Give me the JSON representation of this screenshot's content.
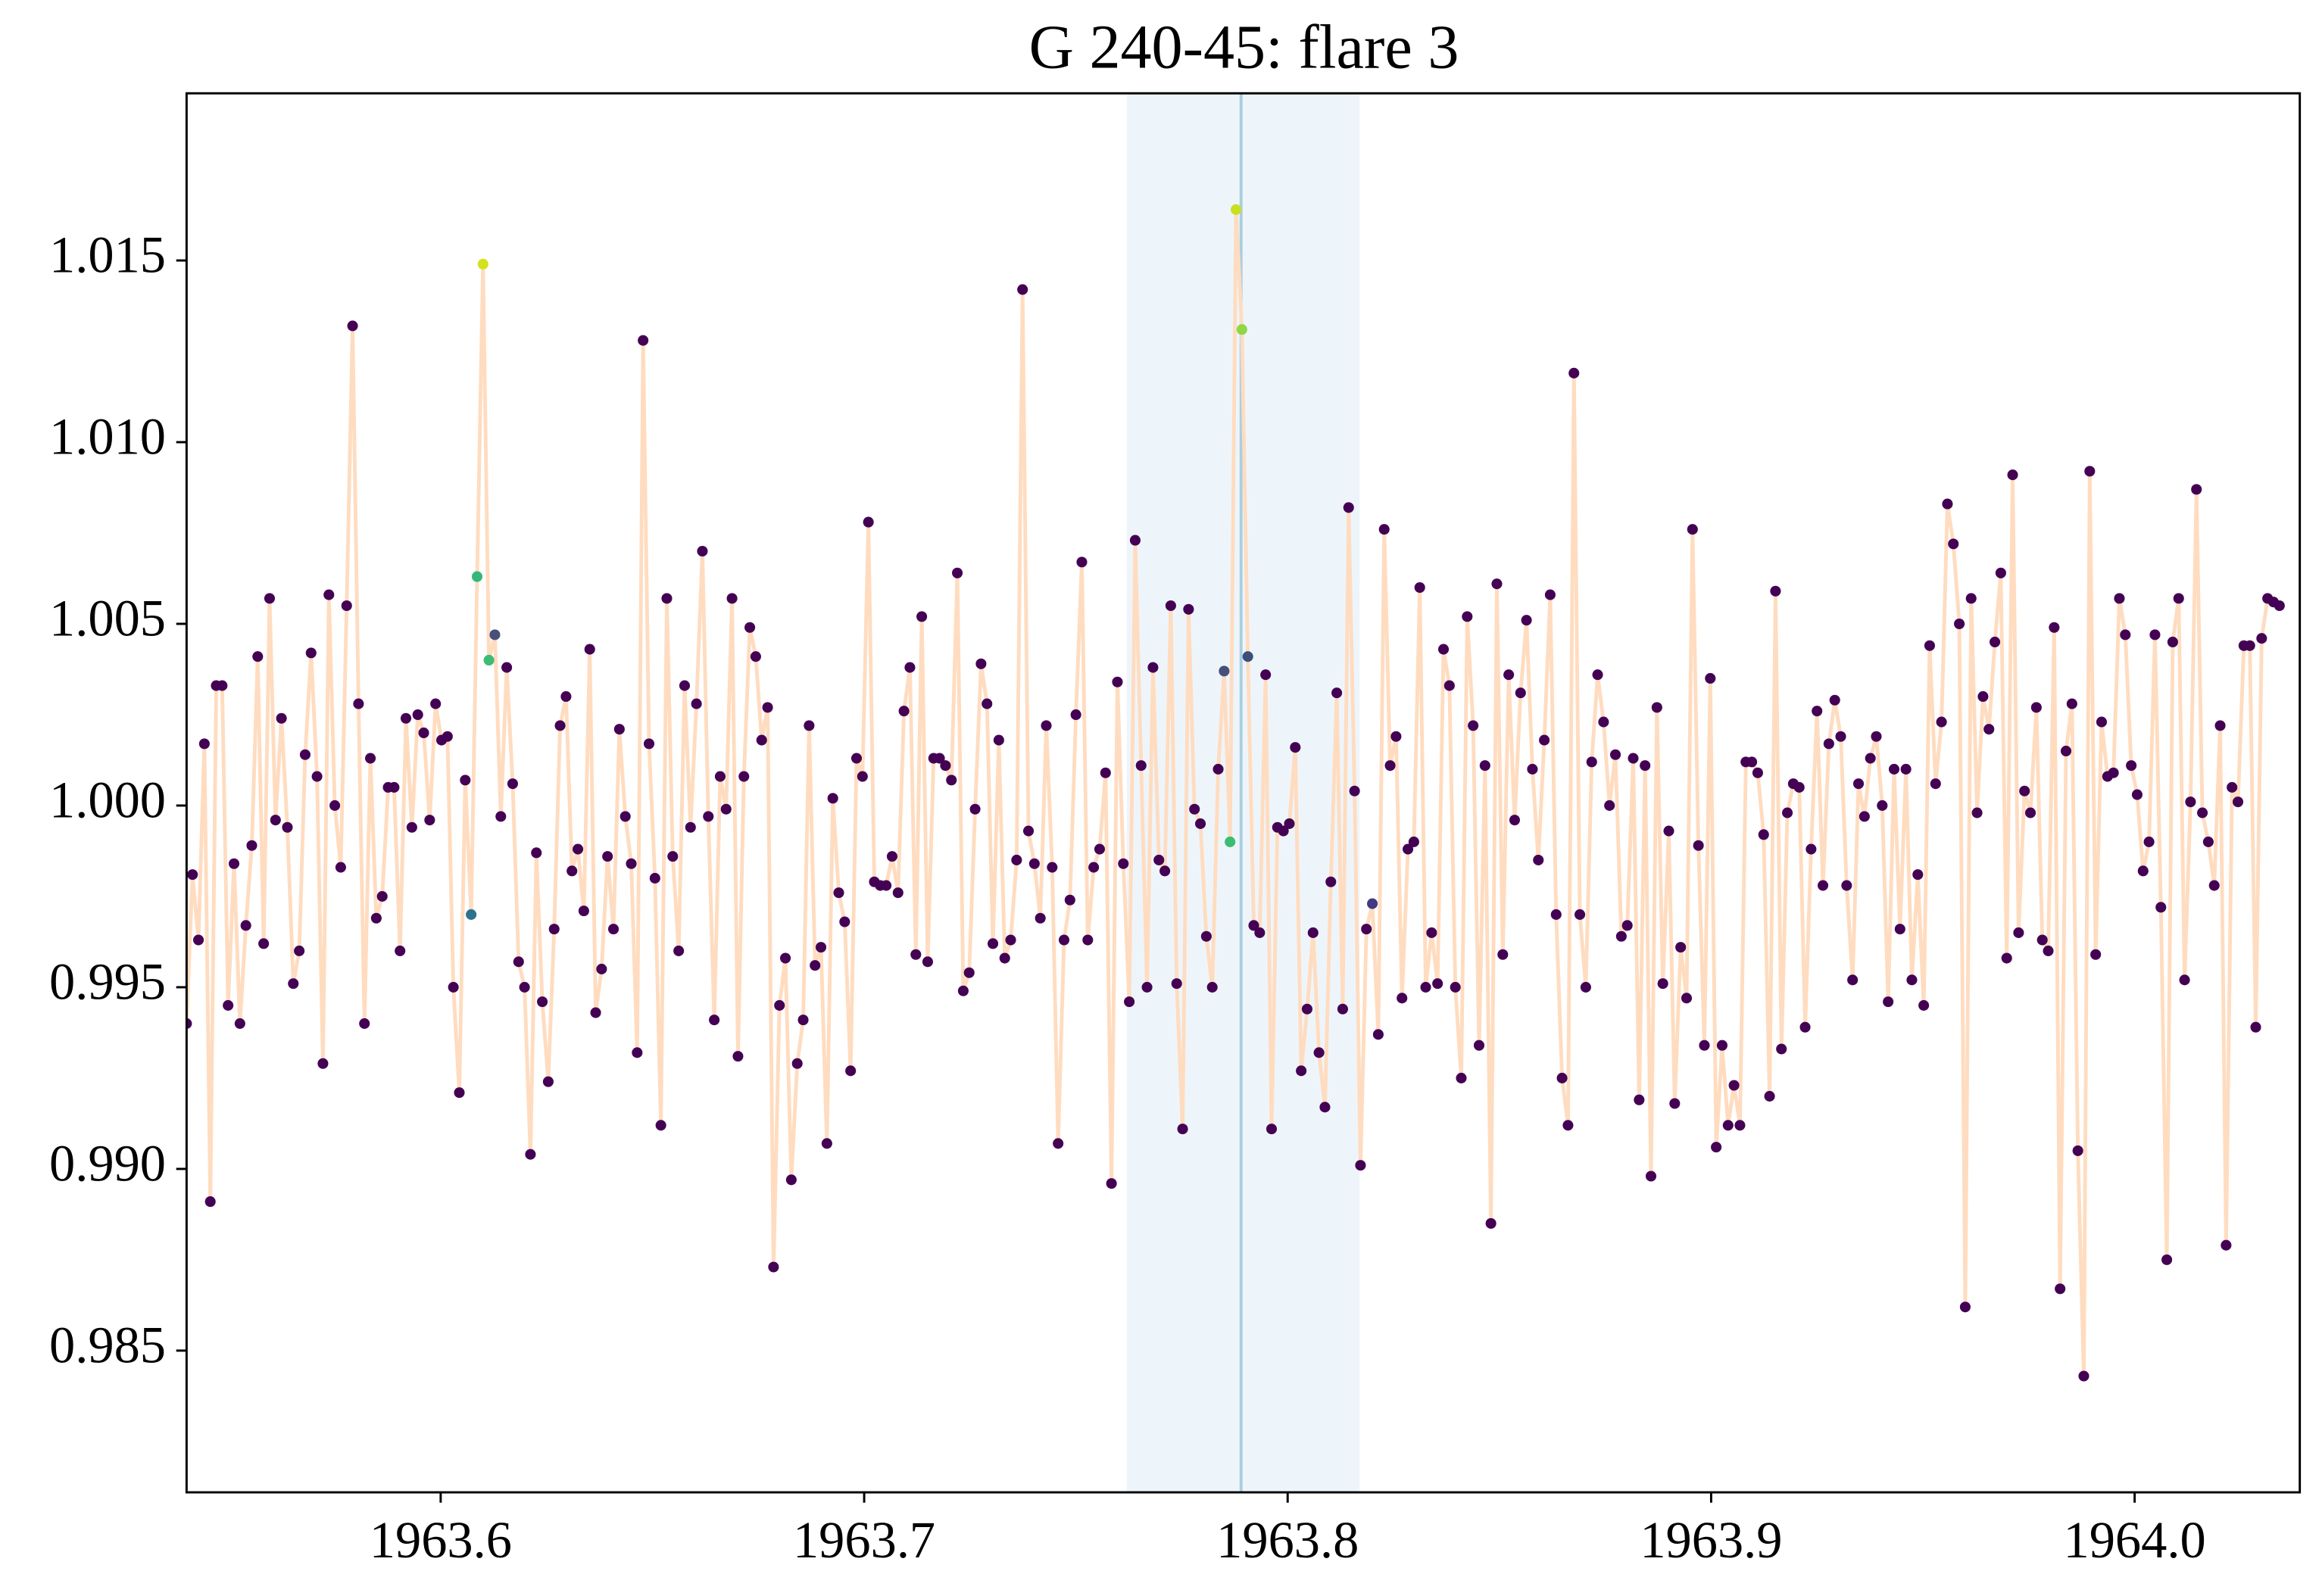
{
  "chart_data": {
    "type": "line",
    "title": "G 240-45: flare 3",
    "x": [
      1963.54,
      1963.5414,
      1963.5428,
      1963.5442,
      1963.5456,
      1963.547,
      1963.5484,
      1963.5498,
      1963.5512,
      1963.5526,
      1963.554,
      1963.5554,
      1963.5568,
      1963.5582,
      1963.5596,
      1963.561,
      1963.5624,
      1963.5638,
      1963.5652,
      1963.5666,
      1963.568,
      1963.5694,
      1963.5708,
      1963.5722,
      1963.5736,
      1963.575,
      1963.5764,
      1963.5778,
      1963.5792,
      1963.5806,
      1963.582,
      1963.5834,
      1963.5848,
      1963.5862,
      1963.5876,
      1963.589,
      1963.5904,
      1963.5918,
      1963.5932,
      1963.5946,
      1963.596,
      1963.5974,
      1963.5988,
      1963.6002,
      1963.6016,
      1963.603,
      1963.6044,
      1963.6058,
      1963.6072,
      1963.6086,
      1963.61,
      1963.6114,
      1963.6128,
      1963.6142,
      1963.6156,
      1963.617,
      1963.6184,
      1963.6198,
      1963.6212,
      1963.6226,
      1963.624,
      1963.6254,
      1963.6268,
      1963.6282,
      1963.6296,
      1963.631,
      1963.6324,
      1963.6338,
      1963.6352,
      1963.6366,
      1963.638,
      1963.6394,
      1963.6408,
      1963.6422,
      1963.6436,
      1963.645,
      1963.6464,
      1963.6478,
      1963.6492,
      1963.6506,
      1963.652,
      1963.6534,
      1963.6548,
      1963.6562,
      1963.6576,
      1963.659,
      1963.6604,
      1963.6618,
      1963.6632,
      1963.6646,
      1963.666,
      1963.6674,
      1963.6688,
      1963.6702,
      1963.6716,
      1963.673,
      1963.6744,
      1963.6758,
      1963.6772,
      1963.6786,
      1963.68,
      1963.6814,
      1963.6828,
      1963.6842,
      1963.6856,
      1963.687,
      1963.6884,
      1963.6898,
      1963.6912,
      1963.6926,
      1963.694,
      1963.6954,
      1963.6968,
      1963.6982,
      1963.6996,
      1963.701,
      1963.7024,
      1963.7038,
      1963.7052,
      1963.7066,
      1963.708,
      1963.7094,
      1963.7108,
      1963.7122,
      1963.7136,
      1963.715,
      1963.7164,
      1963.7178,
      1963.7192,
      1963.7206,
      1963.722,
      1963.7234,
      1963.7248,
      1963.7262,
      1963.7276,
      1963.729,
      1963.7304,
      1963.7318,
      1963.7332,
      1963.7346,
      1963.736,
      1963.7374,
      1963.7388,
      1963.7402,
      1963.7416,
      1963.743,
      1963.7444,
      1963.7458,
      1963.7472,
      1963.7486,
      1963.75,
      1963.7514,
      1963.7528,
      1963.7542,
      1963.7556,
      1963.757,
      1963.7584,
      1963.7598,
      1963.7612,
      1963.7626,
      1963.764,
      1963.7654,
      1963.7668,
      1963.7682,
      1963.7696,
      1963.771,
      1963.7724,
      1963.7738,
      1963.7752,
      1963.7766,
      1963.778,
      1963.7794,
      1963.7808,
      1963.7822,
      1963.7836,
      1963.785,
      1963.7864,
      1963.7878,
      1963.7892,
      1963.7906,
      1963.792,
      1963.7934,
      1963.7948,
      1963.7962,
      1963.7976,
      1963.799,
      1963.8004,
      1963.8018,
      1963.8032,
      1963.8046,
      1963.806,
      1963.8074,
      1963.8088,
      1963.8102,
      1963.8116,
      1963.813,
      1963.8144,
      1963.8158,
      1963.8172,
      1963.8186,
      1963.82,
      1963.8214,
      1963.8228,
      1963.8242,
      1963.8256,
      1963.827,
      1963.8284,
      1963.8298,
      1963.8312,
      1963.8326,
      1963.834,
      1963.8354,
      1963.8368,
      1963.8382,
      1963.8396,
      1963.841,
      1963.8424,
      1963.8438,
      1963.8452,
      1963.8466,
      1963.848,
      1963.8494,
      1963.8508,
      1963.8522,
      1963.8536,
      1963.855,
      1963.8564,
      1963.8578,
      1963.8592,
      1963.8606,
      1963.862,
      1963.8634,
      1963.8648,
      1963.8662,
      1963.8676,
      1963.869,
      1963.8704,
      1963.8718,
      1963.8732,
      1963.8746,
      1963.876,
      1963.8774,
      1963.8788,
      1963.8802,
      1963.8816,
      1963.883,
      1963.8844,
      1963.8858,
      1963.8872,
      1963.8886,
      1963.89,
      1963.8914,
      1963.8928,
      1963.8942,
      1963.8956,
      1963.897,
      1963.8984,
      1963.8998,
      1963.9012,
      1963.9026,
      1963.904,
      1963.9054,
      1963.9068,
      1963.9082,
      1963.9096,
      1963.911,
      1963.9124,
      1963.9138,
      1963.9152,
      1963.9166,
      1963.918,
      1963.9194,
      1963.9208,
      1963.9222,
      1963.9236,
      1963.925,
      1963.9264,
      1963.9278,
      1963.9292,
      1963.9306,
      1963.932,
      1963.9334,
      1963.9348,
      1963.9362,
      1963.9376,
      1963.939,
      1963.9404,
      1963.9418,
      1963.9432,
      1963.9446,
      1963.946,
      1963.9474,
      1963.9488,
      1963.9502,
      1963.9516,
      1963.953,
      1963.9544,
      1963.9558,
      1963.9572,
      1963.9586,
      1963.96,
      1963.9614,
      1963.9628,
      1963.9642,
      1963.9656,
      1963.967,
      1963.9684,
      1963.9698,
      1963.9712,
      1963.9726,
      1963.974,
      1963.9754,
      1963.9768,
      1963.9782,
      1963.9796,
      1963.981,
      1963.9824,
      1963.9838,
      1963.9852,
      1963.9866,
      1963.988,
      1963.9894,
      1963.9908,
      1963.9922,
      1963.9936,
      1963.995,
      1963.9964,
      1963.9978,
      1963.9992,
      1964.0006,
      1964.002,
      1964.0034,
      1964.0048,
      1964.0062,
      1964.0076,
      1964.009,
      1964.0104,
      1964.0118,
      1964.0132,
      1964.0146,
      1964.016,
      1964.0174,
      1964.0188,
      1964.0202,
      1964.0216,
      1964.023,
      1964.0244,
      1964.0258,
      1964.0272,
      1964.0286,
      1964.03,
      1964.0314,
      1964.0328,
      1964.0342
    ],
    "y": [
      0.994,
      0.9981,
      0.9963,
      1.0017,
      0.9891,
      1.0033,
      1.0033,
      0.9945,
      0.9984,
      0.994,
      0.9967,
      0.9989,
      1.0041,
      0.9962,
      1.0057,
      0.9996,
      1.0024,
      0.9994,
      0.9951,
      0.996,
      1.0014,
      1.0042,
      1.0008,
      0.9929,
      1.0058,
      1.0,
      0.9983,
      1.0055,
      1.0132,
      1.0028,
      0.994,
      1.0013,
      0.9969,
      0.9975,
      1.0005,
      1.0005,
      0.996,
      1.0024,
      0.9994,
      1.0025,
      1.002,
      0.9996,
      1.0028,
      1.0018,
      1.0019,
      0.995,
      0.9921,
      1.0007,
      0.997,
      1.0063,
      1.0149,
      1.004,
      1.0047,
      0.9997,
      1.0038,
      1.0006,
      0.9957,
      0.995,
      0.9904,
      0.9987,
      0.9946,
      0.9924,
      0.9966,
      1.0022,
      1.003,
      0.9982,
      0.9988,
      0.9971,
      1.0043,
      0.9943,
      0.9955,
      0.9986,
      0.9966,
      1.0021,
      0.9997,
      0.9984,
      0.9932,
      1.0128,
      1.0017,
      0.998,
      0.9912,
      1.0057,
      0.9986,
      0.996,
      1.0033,
      0.9994,
      1.0028,
      1.007,
      0.9997,
      0.9941,
      1.0008,
      0.9999,
      1.0057,
      0.9931,
      1.0008,
      1.0049,
      1.0041,
      1.0018,
      1.0027,
      0.9873,
      0.9945,
      0.9958,
      0.9897,
      0.9929,
      0.9941,
      1.0022,
      0.9956,
      0.9961,
      0.9907,
      1.0002,
      0.9976,
      0.9968,
      0.9927,
      1.0013,
      1.0008,
      1.0078,
      0.9979,
      0.9978,
      0.9978,
      0.9986,
      0.9976,
      1.0026,
      1.0038,
      0.9959,
      1.0052,
      0.9957,
      1.0013,
      1.0013,
      1.0011,
      1.0007,
      1.0064,
      0.9949,
      0.9954,
      0.9999,
      1.0039,
      1.0028,
      0.9962,
      1.0018,
      0.9958,
      0.9963,
      0.9985,
      1.0142,
      0.9993,
      0.9984,
      0.9969,
      1.0022,
      0.9983,
      0.9907,
      0.9963,
      0.9974,
      1.0025,
      1.0067,
      0.9963,
      0.9983,
      0.9988,
      1.0009,
      0.9896,
      1.0034,
      0.9984,
      0.9946,
      1.0073,
      1.0011,
      0.995,
      1.0038,
      0.9985,
      0.9982,
      1.0055,
      0.9951,
      0.9911,
      1.0054,
      0.9999,
      0.9995,
      0.9964,
      0.995,
      1.001,
      1.0037,
      0.999,
      1.0164,
      1.0131,
      1.0041,
      0.9967,
      0.9965,
      1.0036,
      0.9911,
      0.9994,
      0.9993,
      0.9995,
      1.0016,
      0.9927,
      0.9944,
      0.9965,
      0.9932,
      0.9917,
      0.9979,
      1.0031,
      0.9944,
      1.0082,
      1.0004,
      0.9901,
      0.9966,
      0.9973,
      0.9937,
      1.0076,
      1.0011,
      1.0019,
      0.9947,
      0.9988,
      0.999,
      1.006,
      0.995,
      0.9965,
      0.9951,
      1.0043,
      1.0033,
      0.995,
      0.9925,
      1.0052,
      1.0022,
      0.9934,
      1.0011,
      0.9885,
      1.0061,
      0.9959,
      1.0036,
      0.9996,
      1.0031,
      1.0051,
      1.001,
      0.9985,
      1.0018,
      1.0058,
      0.997,
      0.9925,
      0.9912,
      1.0119,
      0.997,
      0.995,
      1.0012,
      1.0036,
      1.0023,
      1.0,
      1.0014,
      0.9964,
      0.9967,
      1.0013,
      0.9919,
      1.0011,
      0.9898,
      1.0027,
      0.9951,
      0.9993,
      0.9918,
      0.9961,
      0.9947,
      1.0076,
      0.9989,
      0.9934,
      1.0035,
      0.9906,
      0.9934,
      0.9912,
      0.9923,
      0.9912,
      1.0012,
      1.0012,
      1.0009,
      0.9992,
      0.992,
      1.0059,
      0.9933,
      0.9998,
      1.0006,
      1.0005,
      0.9939,
      0.9988,
      1.0026,
      0.9978,
      1.0017,
      1.0029,
      1.0019,
      0.9978,
      0.9952,
      1.0006,
      0.9997,
      1.0013,
      1.0019,
      1.0,
      0.9946,
      1.001,
      0.9966,
      1.001,
      0.9952,
      0.9981,
      0.9945,
      1.0044,
      1.0006,
      1.0023,
      1.0083,
      1.0072,
      1.005,
      0.9862,
      1.0057,
      0.9998,
      1.003,
      1.0021,
      1.0045,
      1.0064,
      0.9958,
      1.0091,
      0.9965,
      1.0004,
      0.9998,
      1.0027,
      0.9963,
      0.996,
      1.0049,
      0.9867,
      1.0015,
      1.0028,
      0.9905,
      0.9843,
      1.0092,
      0.9959,
      1.0023,
      1.0008,
      1.0009,
      1.0057,
      1.0047,
      1.0011,
      1.0003,
      0.9982,
      0.999,
      1.0047,
      0.9972,
      0.9875,
      1.0045,
      1.0057,
      0.9952,
      1.0001,
      1.0087,
      0.9998,
      0.999,
      0.9978,
      1.0022,
      0.9879,
      1.0005,
      1.0001,
      1.0044,
      1.0044,
      0.9939,
      1.0046,
      1.0057,
      1.0056,
      1.0055
    ],
    "line_color": "#ffdcc0",
    "marker_color": "#440154",
    "highlight_colors": {
      "48": "#2c728e",
      "49": "#35b779",
      "50": "#d2e21b",
      "51": "#3dbc74",
      "52": "#46507a",
      "175": "#46507a",
      "176": "#3dbc74",
      "177": "#c8e020",
      "178": "#8fd744",
      "179": "#3b4f7a",
      "200": "#443983"
    },
    "shaded_region": [
      1963.762,
      1963.817
    ],
    "shade_color": "#eef5fa",
    "vline": 1963.789,
    "vline_color": "#a9cfe0",
    "xlim": [
      1963.54,
      1964.039
    ],
    "xticks": [
      1963.6,
      1963.7,
      1963.8,
      1963.9,
      {
        "value": 1964,
        "label": "1964.0"
      }
    ],
    "ylim": [
      0.9811,
      1.0196
    ],
    "yticks": [
      0.985,
      {
        "value": 0.99,
        "label": "0.990"
      },
      0.995,
      {
        "value": 1,
        "label": "1.000"
      },
      1.005,
      {
        "value": 1.01,
        "label": "1.010"
      },
      1.015
    ],
    "grid": false
  }
}
